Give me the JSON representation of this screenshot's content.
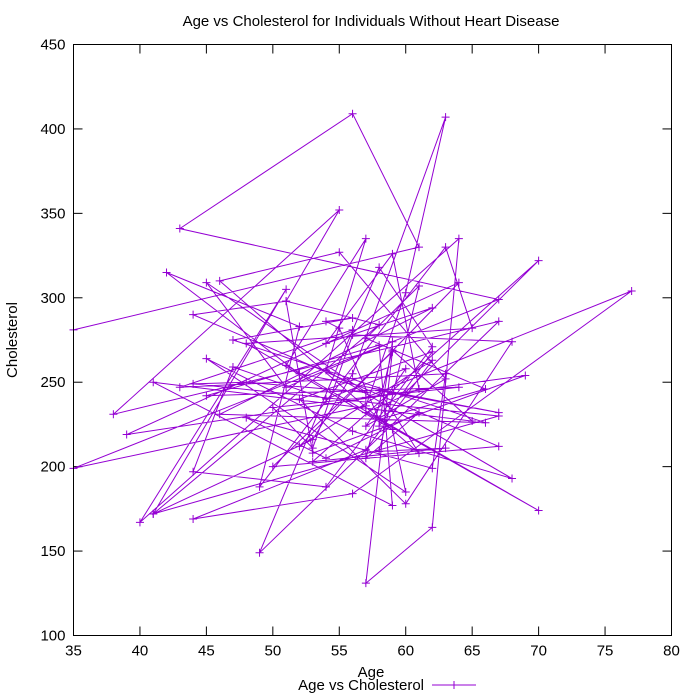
{
  "chart_data": {
    "type": "line",
    "title": "Age vs Cholesterol for Individuals Without Heart Disease",
    "xlabel": "Age",
    "ylabel": "Cholesterol",
    "xlim": [
      35,
      80
    ],
    "ylim": [
      100,
      450
    ],
    "x_ticks": [
      35,
      40,
      45,
      50,
      55,
      60,
      65,
      70,
      75,
      80
    ],
    "y_ticks": [
      100,
      150,
      200,
      250,
      300,
      350,
      400,
      450
    ],
    "grid": false,
    "legend_position": "bottom-center",
    "series": [
      {
        "name": "Age vs Cholesterol",
        "color": "#9400d3",
        "marker": "plus",
        "x": [
          35,
          61,
          56,
          43,
          67,
          35,
          57,
          60,
          63,
          56,
          53,
          41,
          51,
          40,
          64,
          62,
          57,
          59,
          50,
          67,
          44,
          51,
          55,
          38,
          67,
          49,
          58,
          62,
          54,
          44,
          47,
          54,
          60,
          57,
          63,
          55,
          46,
          61,
          58,
          67,
          52,
          42,
          52,
          49,
          63,
          65,
          48,
          59,
          60,
          45,
          56,
          68,
          54,
          57,
          51,
          70,
          57,
          61,
          59,
          54,
          62,
          46,
          66,
          47,
          56,
          54,
          55,
          58,
          66,
          57,
          61,
          58,
          63,
          53,
          70,
          60,
          39,
          64,
          52,
          62,
          57,
          44,
          56,
          77,
          57,
          69,
          53,
          51,
          58,
          41,
          67,
          44,
          48,
          57,
          45,
          51,
          59,
          58,
          62,
          52,
          60,
          68,
          56,
          53,
          50,
          64,
          45,
          58,
          59,
          41,
          65,
          59,
          57,
          61,
          54,
          48,
          62,
          63,
          43,
          56
        ],
        "y": [
          281,
          330,
          409,
          341,
          299,
          199,
          236,
          303,
          407,
          255,
          216,
          172,
          305,
          167,
          335,
          164,
          131,
          268,
          200,
          212,
          290,
          298,
          352,
          231,
          286,
          149,
          318,
          271,
          188,
          197,
          259,
          240,
          258,
          224,
          252,
          327,
          310,
          208,
          245,
          232,
          255,
          315,
          283,
          188,
          330,
          282,
          273,
          222,
          185,
          264,
          221,
          193,
          257,
          335,
          260,
          174,
          232,
          246,
          326,
          273,
          294,
          231,
          226,
          275,
          288,
          286,
          282,
          228,
          246,
          276,
          307,
          209,
          211,
          203,
          322,
          244,
          219,
          309,
          212,
          263,
          210,
          169,
          184,
          304,
          241,
          254,
          208,
          298,
          284,
          172,
          230,
          249,
          250,
          244,
          309,
          247,
          274,
          224,
          268,
          240,
          178,
          274,
          278,
          211,
          235,
          247,
          242,
          272,
          177,
          250,
          227,
          269,
          205,
          232,
          205,
          229,
          199,
          255,
          247,
          281
        ]
      }
    ]
  }
}
